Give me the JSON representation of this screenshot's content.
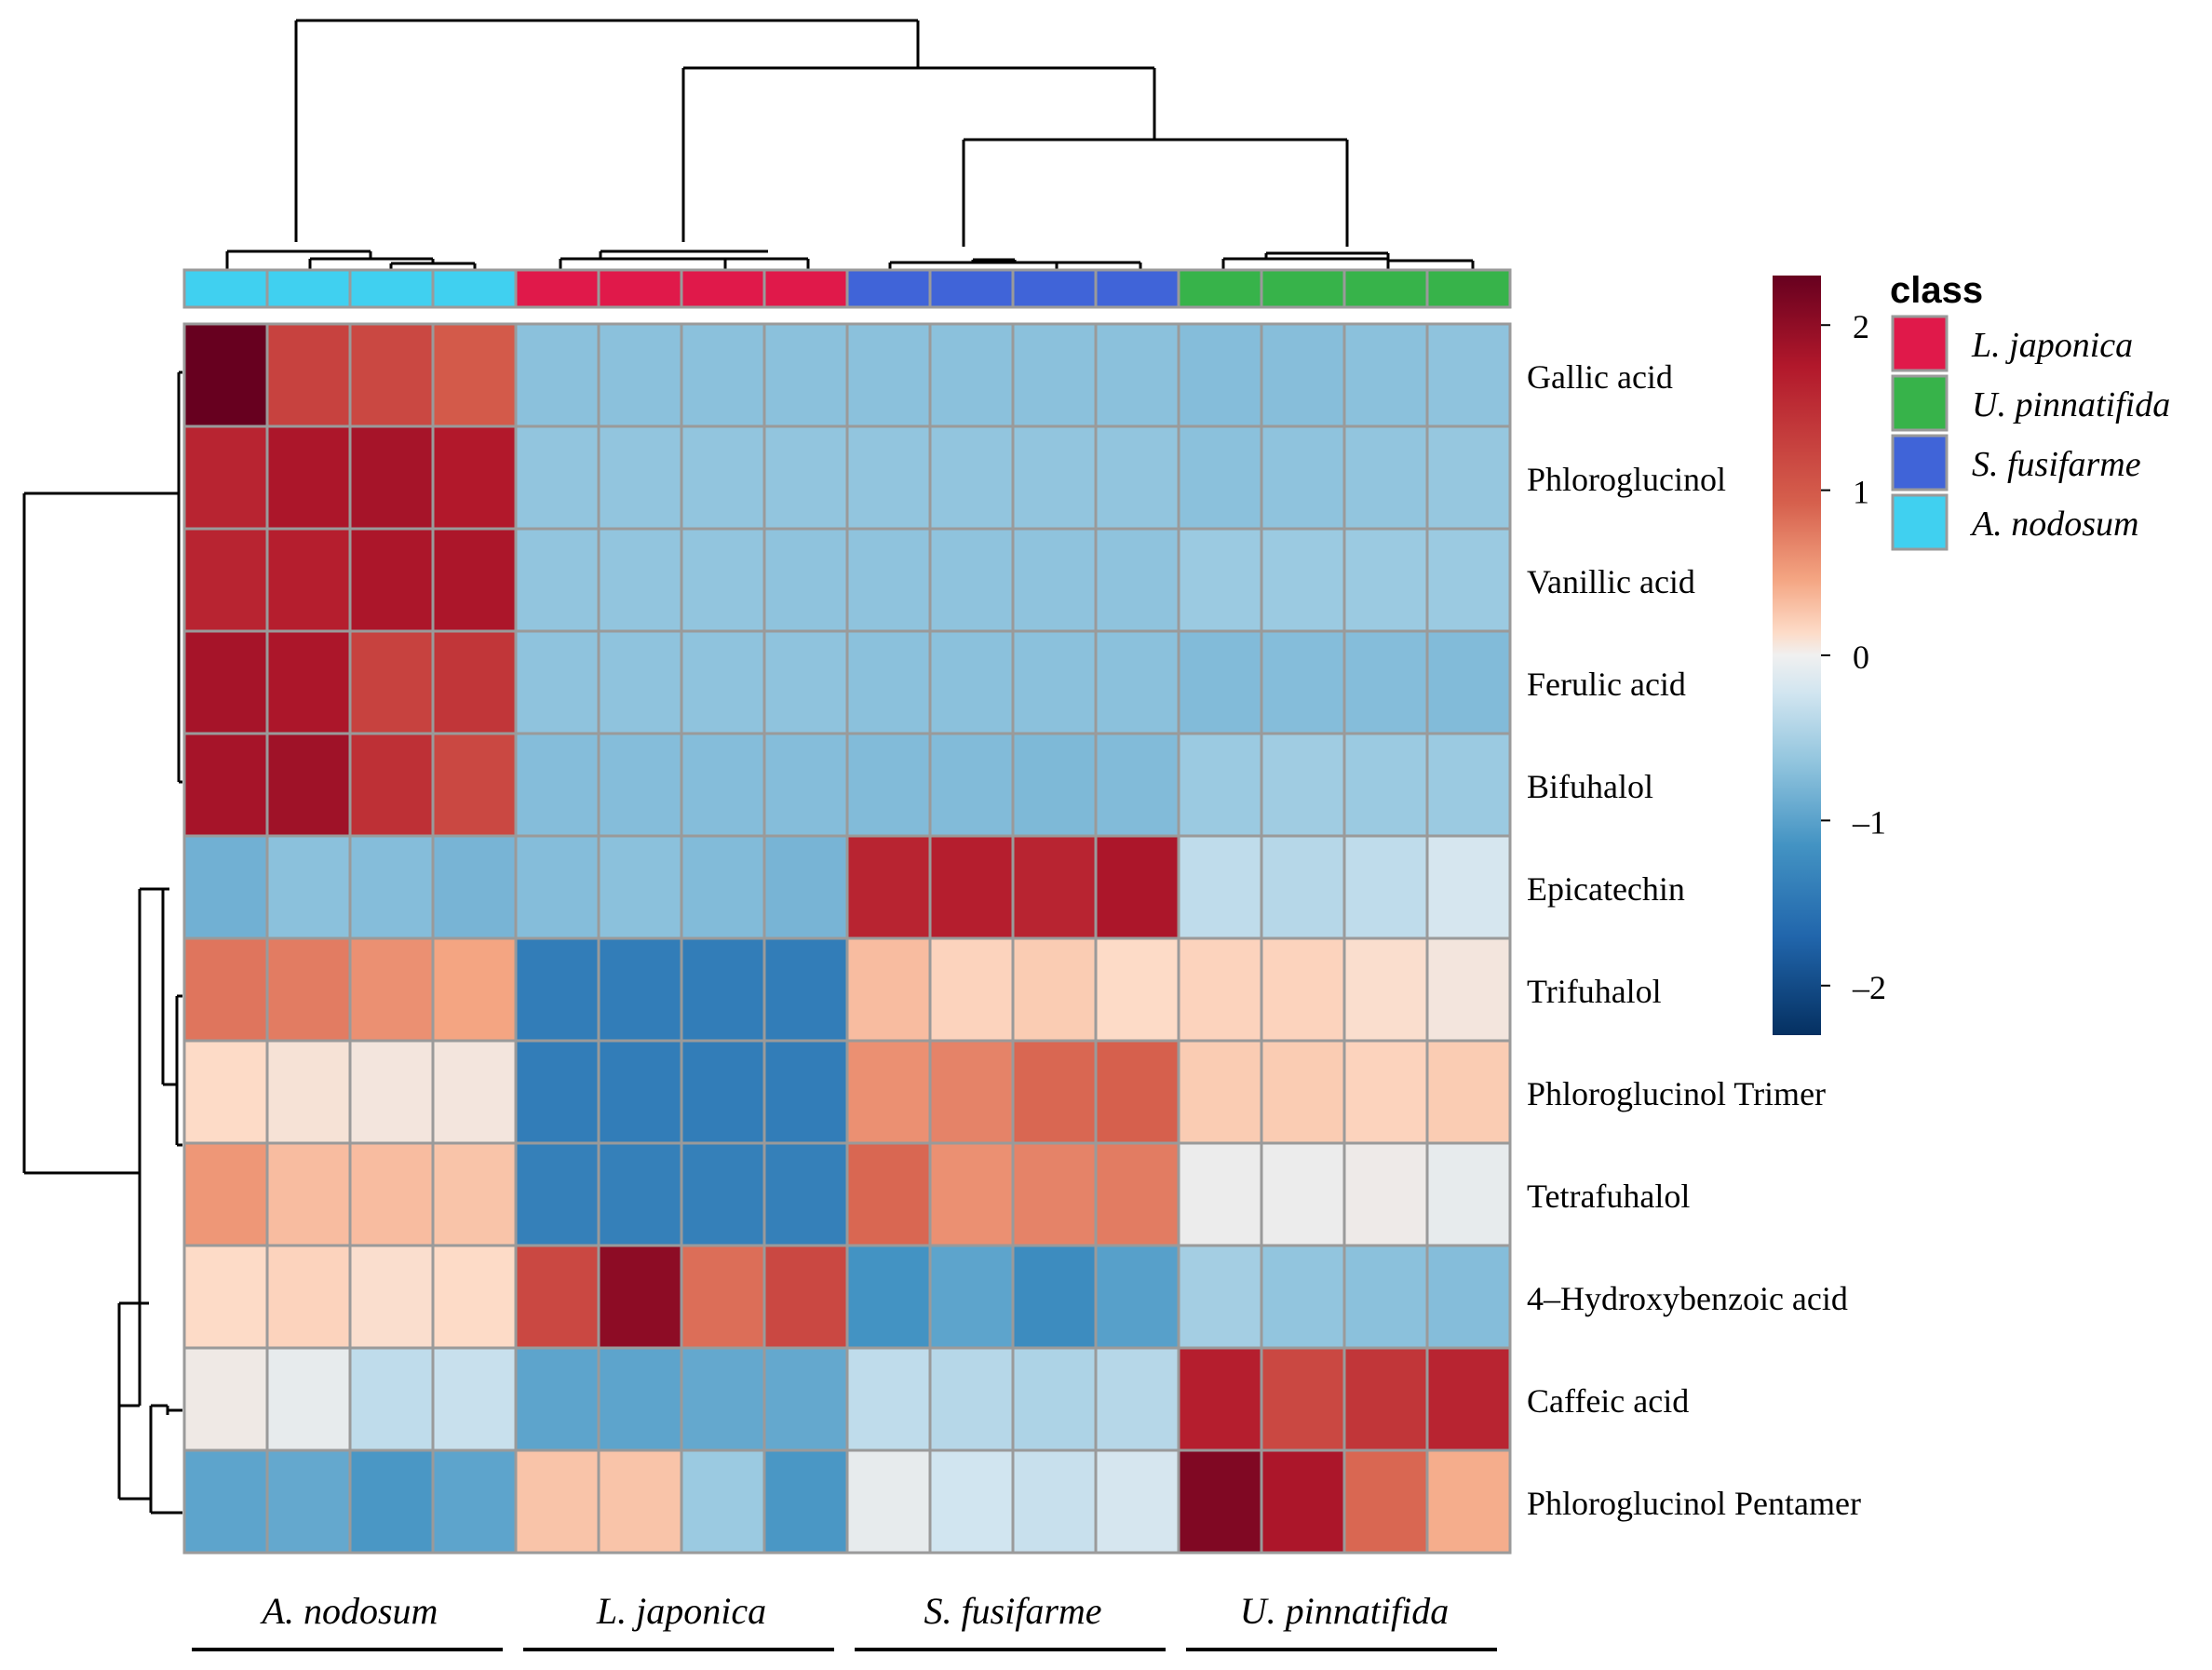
{
  "chart_data": {
    "type": "heatmap",
    "rows": [
      "Gallic acid",
      "Phloroglucinol",
      "Vanillic acid",
      "Ferulic acid",
      "Bifuhalol",
      "Epicatechin",
      "Trifuhalol",
      "Phloroglucinol Trimer",
      "Tetrafuhalol",
      "4–Hydroxybenzoic acid",
      "Caffeic acid",
      "Phloroglucinol Pentamer"
    ],
    "sample_classes": [
      "A. nodosum",
      "A. nodosum",
      "A. nodosum",
      "A. nodosum",
      "L. japonica",
      "L. japonica",
      "L. japonica",
      "L. japonica",
      "S. fusifarme",
      "S. fusifarme",
      "S. fusifarme",
      "S. fusifarme",
      "U. pinnatifida",
      "U. pinnatifida",
      "U. pinnatifida",
      "U. pinnatifida"
    ],
    "values": [
      [
        2.3,
        1.35,
        1.3,
        1.15,
        -0.65,
        -0.65,
        -0.65,
        -0.65,
        -0.65,
        -0.65,
        -0.65,
        -0.65,
        -0.7,
        -0.68,
        -0.65,
        -0.62
      ],
      [
        1.6,
        1.75,
        1.8,
        1.7,
        -0.6,
        -0.6,
        -0.6,
        -0.6,
        -0.6,
        -0.6,
        -0.6,
        -0.6,
        -0.65,
        -0.62,
        -0.6,
        -0.58
      ],
      [
        1.6,
        1.65,
        1.75,
        1.75,
        -0.6,
        -0.6,
        -0.6,
        -0.62,
        -0.62,
        -0.62,
        -0.62,
        -0.62,
        -0.55,
        -0.55,
        -0.55,
        -0.55
      ],
      [
        1.8,
        1.75,
        1.35,
        1.45,
        -0.62,
        -0.62,
        -0.62,
        -0.62,
        -0.65,
        -0.65,
        -0.65,
        -0.65,
        -0.72,
        -0.7,
        -0.7,
        -0.72
      ],
      [
        1.8,
        1.85,
        1.5,
        1.3,
        -0.7,
        -0.7,
        -0.7,
        -0.7,
        -0.72,
        -0.72,
        -0.75,
        -0.72,
        -0.55,
        -0.52,
        -0.55,
        -0.55
      ],
      [
        -0.85,
        -0.65,
        -0.7,
        -0.8,
        -0.7,
        -0.65,
        -0.72,
        -0.8,
        1.6,
        1.65,
        1.6,
        1.75,
        -0.35,
        -0.4,
        -0.35,
        -0.2
      ],
      [
        0.95,
        0.9,
        0.75,
        0.6,
        -1.5,
        -1.5,
        -1.5,
        -1.5,
        0.45,
        0.3,
        0.35,
        0.25,
        0.3,
        0.3,
        0.2,
        0.1
      ],
      [
        0.25,
        0.15,
        0.1,
        0.1,
        -1.5,
        -1.5,
        -1.5,
        -1.5,
        0.75,
        0.85,
        1.05,
        1.1,
        0.35,
        0.35,
        0.3,
        0.35
      ],
      [
        0.7,
        0.45,
        0.45,
        0.4,
        -1.45,
        -1.45,
        -1.45,
        -1.45,
        1.05,
        0.75,
        0.85,
        0.9,
        0.0,
        0.0,
        0.03,
        -0.05
      ],
      [
        0.25,
        0.3,
        0.2,
        0.25,
        1.3,
        2.0,
        1.0,
        1.3,
        -1.2,
        -1.0,
        -1.3,
        -1.05,
        -0.5,
        -0.6,
        -0.65,
        -0.7
      ],
      [
        0.05,
        -0.05,
        -0.35,
        -0.3,
        -1.0,
        -1.0,
        -0.95,
        -0.95,
        -0.35,
        -0.4,
        -0.45,
        -0.4,
        1.65,
        1.3,
        1.45,
        1.6
      ],
      [
        -1.0,
        -0.95,
        -1.15,
        -1.0,
        0.4,
        0.4,
        -0.55,
        -1.15,
        -0.05,
        -0.25,
        -0.3,
        -0.2,
        2.1,
        1.75,
        1.05,
        0.55
      ]
    ],
    "legend": {
      "title": "class",
      "entries": [
        "L. japonica",
        "U. pinnatifida",
        "S. fusifarme",
        "A. nodosum"
      ],
      "colors": [
        "#E0194A",
        "#37B34A",
        "#4064D8",
        "#40D0F0"
      ]
    },
    "colorbar": {
      "ticks": [
        "2",
        "1",
        "0",
        "–1",
        "–2"
      ],
      "values": [
        2,
        1,
        0,
        -1,
        -2
      ],
      "range": [
        -2.3,
        2.3
      ]
    },
    "column_groups": [
      "A. nodosum",
      "L. japonica",
      "S. fusifarme",
      "U. pinnatifida"
    ]
  }
}
